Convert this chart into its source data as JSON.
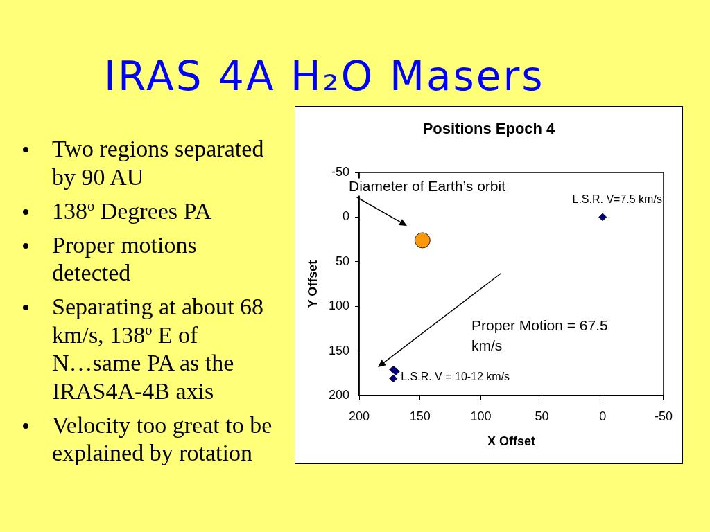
{
  "chart_data": {
    "type": "scatter",
    "title": "IRAS 4A H₂O Masers",
    "subtitle": "Positions Epoch 4",
    "xlabel": "X Offset",
    "ylabel": "Y Offset",
    "xlim": [
      200,
      -50
    ],
    "xticks": [
      200,
      150,
      100,
      50,
      0,
      -50
    ],
    "ylim": [
      200,
      -50
    ],
    "yticks": [
      -50,
      0,
      50,
      100,
      150,
      200
    ],
    "series": [
      {
        "color": "#000080",
        "marker": "diamond",
        "x": [
          0,
          172,
          170,
          172
        ],
        "values": [
          0,
          171,
          173,
          181
        ]
      },
      {
        "color": "#ff9900",
        "marker": "circle",
        "x": [
          148
        ],
        "values": [
          26
        ]
      }
    ],
    "annotations": [
      "Two regions separated by 90 AU",
      "138$^{o}$ Degrees PA",
      "Proper motions detected",
      "Separating at about 68 km/s, 138$^{o}$ E of N…same PA as the IRAS4A-4B axis",
      "Velocity too great to be explained by rotation",
      "Diameter of Earth’s orbit",
      {
        "text": "L.S.R. V=7.5 km/s",
        "x": 0,
        "y": 0
      },
      "Proper Motion = 67.5 km/s",
      {
        "text": "L.S.R. V = 10-12 km/s",
        "x": 172,
        "y": 181
      }
    ]
  }
}
